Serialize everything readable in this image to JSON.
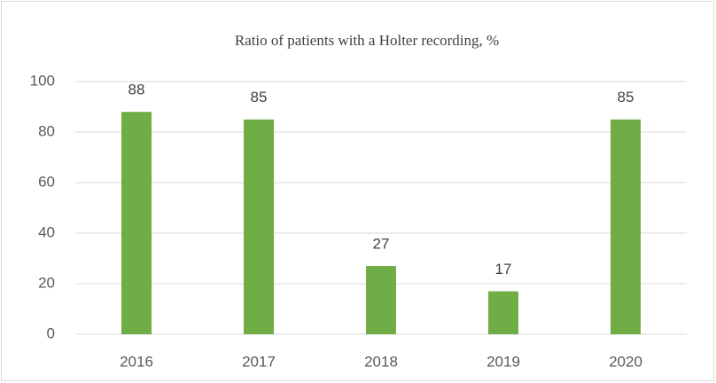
{
  "chart_data": {
    "type": "bar",
    "title": "Ratio of patients with a Holter recording, %",
    "categories": [
      "2016",
      "2017",
      "2018",
      "2019",
      "2020"
    ],
    "values": [
      88,
      85,
      27,
      17,
      85
    ],
    "color": "#70ad47",
    "ylim": [
      0,
      100
    ],
    "yticks": [
      0,
      20,
      40,
      60,
      80,
      100
    ],
    "grid": true,
    "data_labels": true
  }
}
